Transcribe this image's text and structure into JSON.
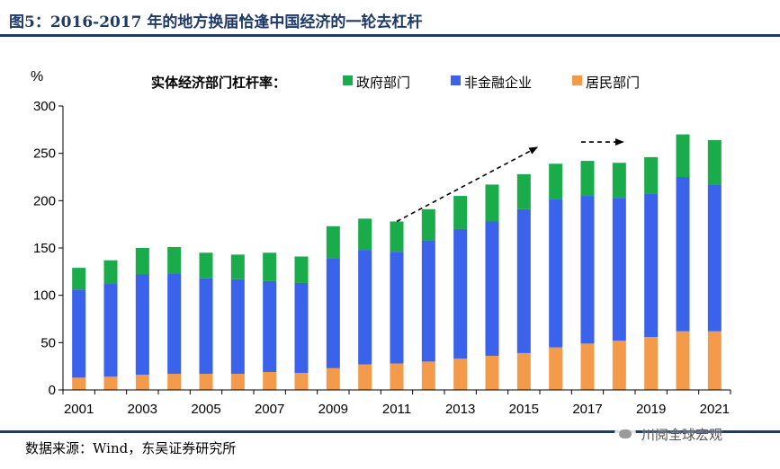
{
  "title": "图5：2016-2017 年的地方换届恰逢中国经济的一轮去杠杆",
  "source": "数据来源：Wind，东吴证券研究所",
  "watermark": "川阅全球宏观",
  "colors": {
    "government": "#1aab4b",
    "corporate": "#3b62ea",
    "household": "#f39b4a",
    "title": "#1f3a66"
  },
  "chart_data": {
    "type": "bar",
    "stacked": true,
    "unit": "%",
    "legend_title": "实体经济部门杠杆率：",
    "legend_position": "top-center",
    "grid": false,
    "ylim": [
      0,
      300
    ],
    "yticks": [
      0,
      50,
      100,
      150,
      200,
      250,
      300
    ],
    "categories": [
      2001,
      2002,
      2003,
      2004,
      2005,
      2006,
      2007,
      2008,
      2009,
      2010,
      2011,
      2012,
      2013,
      2014,
      2015,
      2016,
      2017,
      2018,
      2019,
      2020,
      2021
    ],
    "xtick_labels": [
      "2001",
      "2003",
      "2005",
      "2007",
      "2009",
      "2011",
      "2013",
      "2015",
      "2017",
      "2019",
      "2021"
    ],
    "series": [
      {
        "name": "居民部门",
        "color": "#f39b4a",
        "values": [
          13,
          14,
          16,
          17,
          17,
          17,
          19,
          18,
          23,
          27,
          28,
          30,
          33,
          36,
          39,
          45,
          49,
          52,
          56,
          62,
          62
        ]
      },
      {
        "name": "非金融企业",
        "color": "#3b62ea",
        "values": [
          93,
          98,
          106,
          106,
          101,
          100,
          96,
          95,
          116,
          121,
          118,
          128,
          137,
          142,
          152,
          157,
          156,
          151,
          151,
          163,
          155
        ]
      },
      {
        "name": "政府部门",
        "color": "#1aab4b",
        "values": [
          23,
          25,
          28,
          28,
          27,
          26,
          30,
          28,
          34,
          33,
          32,
          33,
          35,
          39,
          37,
          37,
          37,
          37,
          39,
          45,
          47
        ]
      }
    ],
    "legend_order": [
      "政府部门",
      "非金融企业",
      "居民部门"
    ],
    "annotations": [
      {
        "type": "dashed-arrow",
        "from": [
          2011,
          178
        ],
        "to": [
          2015.4,
          256
        ]
      },
      {
        "type": "dashed-arrow",
        "from": [
          2016.8,
          262
        ],
        "to": [
          2018.1,
          262
        ]
      }
    ]
  }
}
